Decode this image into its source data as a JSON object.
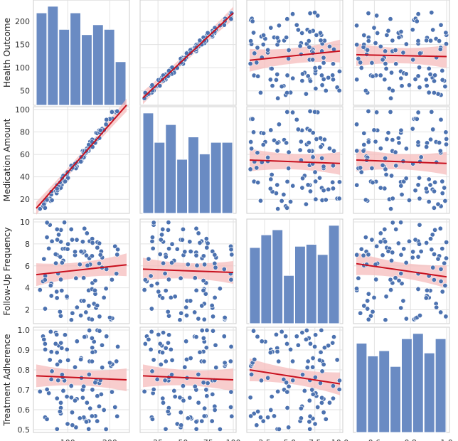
{
  "chart_data": {
    "type": "pairplot",
    "variables": [
      {
        "key": "health",
        "label": "Health Outcome",
        "range": [
          25,
          240
        ],
        "yticks": [
          50,
          100,
          150,
          200
        ],
        "xticks": [
          100,
          200
        ],
        "xtick_labels": [
          "100",
          "200"
        ]
      },
      {
        "key": "med",
        "label": "Medication Amount",
        "range": [
          10,
          100
        ],
        "yticks": [
          20,
          40,
          60,
          80,
          100
        ],
        "xticks": [
          25,
          50,
          75,
          100
        ],
        "xtick_labels": [
          "25",
          "50",
          "75",
          "100"
        ]
      },
      {
        "key": "follow",
        "label": "Follow-Up Frequency",
        "range": [
          1,
          10
        ],
        "yticks": [
          2,
          4,
          6,
          8,
          10
        ],
        "xticks": [
          2.5,
          5.0,
          7.5,
          10.0
        ],
        "xtick_labels": [
          "2.5",
          "5.0",
          "7.5",
          "10.0"
        ]
      },
      {
        "key": "adh",
        "label": "Treatment Adherence",
        "range": [
          0.5,
          1.0
        ],
        "yticks": [
          0.5,
          0.6,
          0.7,
          0.8,
          0.9,
          1.0
        ],
        "ytick_labels": [
          "0.5",
          "0.6",
          "0.7",
          "0.8",
          "0.9",
          "1.0"
        ],
        "xticks": [
          0.6,
          0.8,
          1.0
        ],
        "xtick_labels": [
          "0.6",
          "0.8",
          "1.0"
        ]
      }
    ],
    "histograms": [
      {
        "var": "health",
        "counts": [
          14,
          15,
          11.5,
          14,
          10.7,
          12.2,
          11.5,
          6.6
        ]
      },
      {
        "var": "med",
        "counts": [
          13,
          9.2,
          11.5,
          7,
          9.9,
          7.7,
          9.2,
          9.2
        ]
      },
      {
        "var": "follow",
        "counts": [
          12,
          14,
          14.8,
          7.6,
          12.2,
          12.5,
          10.9,
          15.5
        ]
      },
      {
        "var": "adh",
        "counts": [
          11.9,
          10.2,
          10.9,
          8.8,
          12.5,
          13.2,
          10.6,
          12.5
        ]
      }
    ],
    "regressions": [
      {
        "x": "med",
        "y": "health",
        "y_at_xmin": 35,
        "y_at_xmax": 218
      },
      {
        "x": "follow",
        "y": "health",
        "y_at_xmin": 116,
        "y_at_xmax": 136
      },
      {
        "x": "adh",
        "y": "health",
        "y_at_xmin": 128,
        "y_at_xmax": 124
      },
      {
        "x": "health",
        "y": "med",
        "y_at_xmin": 12,
        "y_at_xmax": 104
      },
      {
        "x": "follow",
        "y": "med",
        "y_at_xmin": 55,
        "y_at_xmax": 52
      },
      {
        "x": "adh",
        "y": "med",
        "y_at_xmin": 55,
        "y_at_xmax": 52
      },
      {
        "x": "health",
        "y": "follow",
        "y_at_xmin": 5.2,
        "y_at_xmax": 6.1
      },
      {
        "x": "med",
        "y": "follow",
        "y_at_xmin": 5.7,
        "y_at_xmax": 5.4
      },
      {
        "x": "adh",
        "y": "follow",
        "y_at_xmin": 6.2,
        "y_at_xmax": 5.0
      },
      {
        "x": "health",
        "y": "adh",
        "y_at_xmin": 0.77,
        "y_at_xmax": 0.75
      },
      {
        "x": "med",
        "y": "adh",
        "y_at_xmin": 0.77,
        "y_at_xmax": 0.75
      },
      {
        "x": "follow",
        "y": "adh",
        "y_at_xmin": 0.8,
        "y_at_xmax": 0.73
      }
    ],
    "sample_size": 100,
    "colors": {
      "points": "#4c72b0",
      "hist": "#6a8bc3",
      "regression": "#c8101e",
      "ci_band": "#f6bcbc",
      "grid": "#e2e2e2",
      "frame": "#cccccc"
    }
  }
}
